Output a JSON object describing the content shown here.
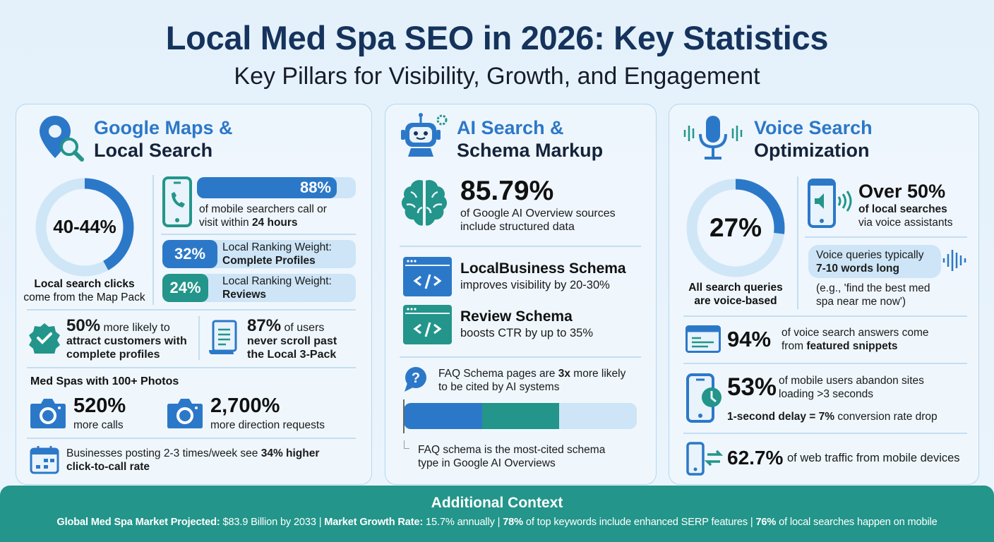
{
  "header": {
    "title": "Local Med Spa SEO in 2026: Key Statistics",
    "subtitle": "Key Pillars for Visibility, Growth, and Engagement"
  },
  "colors": {
    "navy": "#15335c",
    "blue": "#2c78c8",
    "teal": "#23958a",
    "light": "#cde5f6"
  },
  "maps": {
    "title_line1": "Google Maps &",
    "title_line2": "Local Search",
    "icon": "map-pin-search-icon",
    "donut": {
      "value_label": "40-44%",
      "value_pct": 42,
      "caption": [
        {
          "t": "Local search clicks",
          "b": true
        },
        {
          "t": "\ncome from the Map Pack"
        }
      ]
    },
    "mobile": {
      "value_label": "88%",
      "value_pct": 88,
      "text": [
        {
          "t": "of mobile searchers call or\nvisit within "
        },
        {
          "t": "24 hours",
          "b": true
        }
      ],
      "icon": "phone-call-icon"
    },
    "rank1": {
      "value": "32%",
      "text": [
        {
          "t": "Local Ranking Weight:\n"
        },
        {
          "t": "Complete Profiles",
          "b": true
        }
      ]
    },
    "rank2": {
      "value": "24%",
      "text": [
        {
          "t": "Local Ranking Weight:\n"
        },
        {
          "t": "Reviews",
          "b": true
        }
      ]
    },
    "profiles": {
      "text": [
        {
          "t": "50%",
          "b": true,
          "big": true
        },
        {
          "t": " more likely to\n"
        },
        {
          "t": "attract customers with\ncomplete profiles",
          "b": true
        }
      ],
      "icon": "verified-badge-icon"
    },
    "scroll": {
      "text": [
        {
          "t": "87%",
          "b": true,
          "big": true
        },
        {
          "t": " of users\n"
        },
        {
          "t": "never scroll past\nthe Local 3-Pack",
          "b": true
        }
      ],
      "icon": "document-scroll-icon"
    },
    "photos": {
      "heading": "Med Spas with 100+ Photos",
      "items": [
        {
          "value": "520%",
          "label": "more calls",
          "icon": "camera-icon"
        },
        {
          "value": "2,700%",
          "label": "more direction requests",
          "icon": "camera-icon"
        }
      ]
    },
    "posting": {
      "text": [
        {
          "t": "Businesses posting 2-3 times/week see "
        },
        {
          "t": "34% higher\nclick-to-call rate",
          "b": true
        }
      ],
      "icon": "calendar-icon"
    }
  },
  "ai": {
    "title_line1": "AI Search &",
    "title_line2": "Schema Markup",
    "icon": "robot-icon",
    "overview": {
      "value": "85.79%",
      "text": "of Google AI Overview sources\ninclude structured data",
      "icon": "brain-icon"
    },
    "schemas": [
      {
        "title": "LocalBusiness Schema",
        "text": "improves visibility by 20-30%",
        "icon": "code-window-icon"
      },
      {
        "title": "Review Schema",
        "text": "boosts CTR by up to 35%",
        "icon": "code-window-icon"
      }
    ],
    "faq": {
      "text": [
        {
          "t": "FAQ Schema pages are "
        },
        {
          "t": "3x",
          "b": true
        },
        {
          "t": " more likely\nto be cited by AI systems"
        }
      ],
      "caption": "FAQ schema is the most-cited schema\ntype in Google AI Overviews",
      "icon": "question-bubble-icon"
    }
  },
  "voice": {
    "title_line1": "Voice Search",
    "title_line2": "Optimization",
    "icon": "microphone-icon",
    "donut": {
      "value_label": "27%",
      "value_pct": 27,
      "caption": "All search queries\nare voice-based"
    },
    "assistants": {
      "value": "Over 50%",
      "text": [
        {
          "t": "of local searches",
          "b": true
        },
        {
          "t": "\nvia voice assistants"
        }
      ],
      "icon": "phone-speaker-icon"
    },
    "queries": {
      "text": [
        {
          "t": "Voice queries typically\n"
        },
        {
          "t": "7-10 words long",
          "b": true
        }
      ],
      "example": "(e.g., 'find the best med\nspa near me now')",
      "icon": "sound-wave-icon"
    },
    "snippets": {
      "value": "94%",
      "text": [
        {
          "t": "of voice search answers come\nfrom "
        },
        {
          "t": "featured snippets",
          "b": true
        }
      ],
      "icon": "browser-window-icon"
    },
    "abandon": {
      "value": "53%",
      "text": "of mobile users abandon sites\nloading >3 seconds",
      "delay": [
        {
          "t": "1-second delay = 7%",
          "b": true
        },
        {
          "t": " conversion rate drop"
        }
      ],
      "icon": "phone-clock-icon"
    },
    "traffic": {
      "value": "62.7%",
      "text": "of web traffic from mobile devices",
      "icon": "phone-transfer-icon"
    }
  },
  "footer": {
    "title": "Additional Context",
    "line": [
      {
        "t": "Global Med Spa Market Projected:",
        "b": true
      },
      {
        "t": " $83.9 Billion by 2033 | "
      },
      {
        "t": "Market Growth Rate:",
        "b": true
      },
      {
        "t": " 15.7% annually | "
      },
      {
        "t": "78%",
        "b": true
      },
      {
        "t": " of top keywords include enhanced SERP features | "
      },
      {
        "t": "76%",
        "b": true
      },
      {
        "t": " of local searches happen on mobile"
      }
    ]
  }
}
